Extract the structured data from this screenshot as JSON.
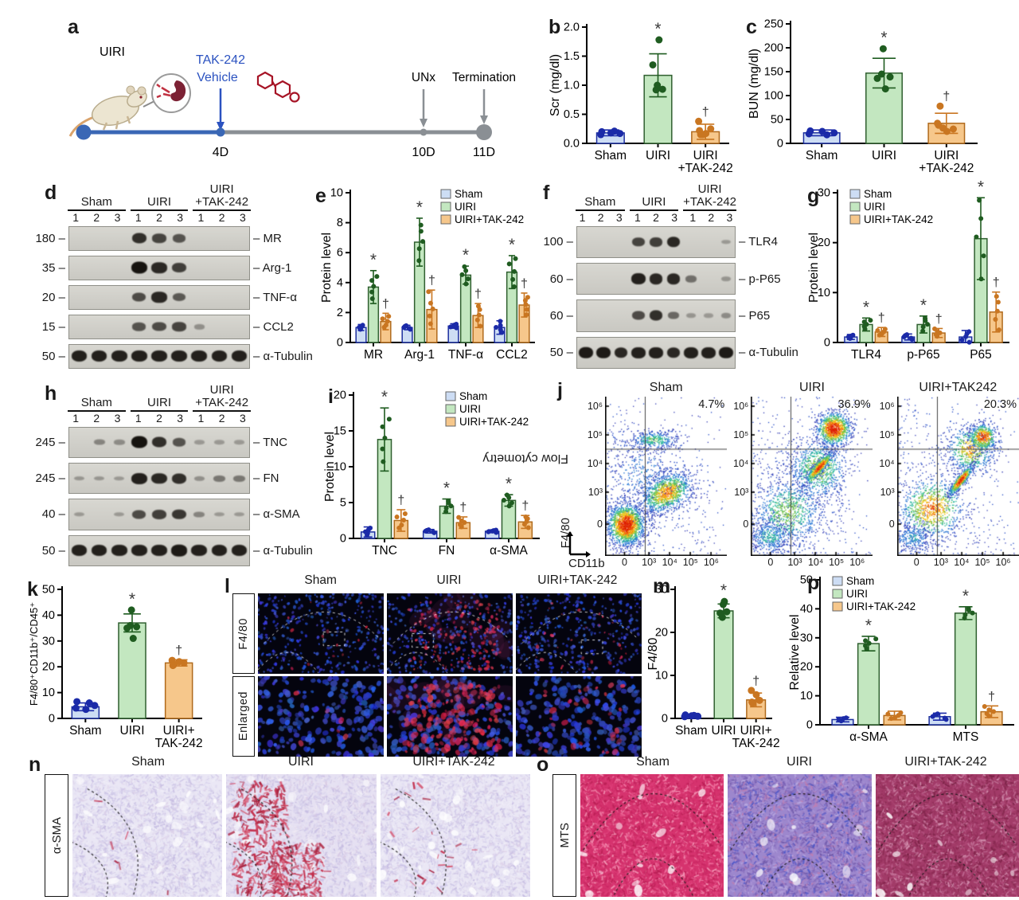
{
  "panel_labels": {
    "a": "a",
    "b": "b",
    "c": "c",
    "d": "d",
    "e": "e",
    "f": "f",
    "g": "g",
    "h": "h",
    "i": "i",
    "j": "j",
    "k": "k",
    "l": "l",
    "m": "m",
    "n": "n",
    "o": "o",
    "p": "p"
  },
  "timeline": {
    "uiri": "UIRI",
    "tak": "TAK-242",
    "vehicle": "Vehicle",
    "unx": "UNx",
    "termination": "Termination",
    "d4": "4D",
    "d10": "10D",
    "d11": "11D"
  },
  "colors": {
    "fill": [
      "#cdddf4",
      "#c3e7c0",
      "#f6c78b"
    ],
    "stroke": [
      "#1c2f9e",
      "#2f5f2f",
      "#b06a1c"
    ],
    "point": [
      "#1b2aa8",
      "#1f5c20",
      "#c97621"
    ],
    "sig": "#3a3a3a",
    "timeline_blue": "#3a67b5",
    "timeline_gray": "#8a8f94",
    "text_blue": "#2b52c0",
    "chem_red": "#a61325"
  },
  "chart_data": [
    {
      "id": "b",
      "type": "bar",
      "ylabel": "Scr (mg/dl)",
      "ylim": [
        0,
        2
      ],
      "yticks": [
        "0.0",
        "0.5",
        "1.0",
        "1.5",
        "2.0"
      ],
      "categories": [
        "Sham",
        "UIRI",
        "UIRI\n+TAK-242"
      ],
      "values": [
        0.18,
        1.17,
        0.2
      ],
      "errors": [
        0.05,
        0.37,
        0.13
      ],
      "sig": [
        "",
        "*",
        "†"
      ],
      "points": [
        [
          0.15,
          0.2,
          0.17,
          0.21,
          0.18
        ],
        [
          0.92,
          1.0,
          1.35,
          1.78,
          0.93
        ],
        [
          0.15,
          0.38,
          0.25,
          0.17,
          0.22,
          0.15
        ]
      ]
    },
    {
      "id": "c",
      "type": "bar",
      "ylabel": "BUN (mg/dl)",
      "ylim": [
        0,
        250
      ],
      "yticks": [
        "0",
        "50",
        "100",
        "150",
        "200",
        "250"
      ],
      "categories": [
        "Sham",
        "UIRI",
        "UIRI\n+TAK-242"
      ],
      "values": [
        22,
        147,
        42
      ],
      "errors": [
        6,
        31,
        21
      ],
      "sig": [
        "",
        "*",
        "†"
      ],
      "points": [
        [
          20,
          26,
          22,
          18,
          25
        ],
        [
          145,
          198,
          136,
          114,
          139
        ],
        [
          78,
          42,
          30,
          25,
          38,
          32
        ]
      ]
    },
    {
      "id": "e",
      "type": "grouped",
      "ylabel": "Protein level",
      "ylim": [
        0,
        10
      ],
      "yticks": [
        "0",
        "2",
        "4",
        "6",
        "8",
        "10"
      ],
      "categories": [
        "MR",
        "Arg-1",
        "TNF-α",
        "CCL2"
      ],
      "legend": [
        "Sham",
        "UIRI",
        "UIRI+TAK-242"
      ],
      "legend_pos": "tr",
      "series": [
        {
          "name": "Sham",
          "values": [
            1,
            1,
            1.1,
            1
          ],
          "errors": [
            0.2,
            0.15,
            0.15,
            0.45
          ],
          "sig": [
            "",
            "",
            "",
            ""
          ]
        },
        {
          "name": "UIRI",
          "values": [
            3.7,
            6.7,
            4.5,
            4.7
          ],
          "errors": [
            1.1,
            1.6,
            0.6,
            1.1
          ],
          "sig": [
            "*",
            "*",
            "*",
            "*"
          ]
        },
        {
          "name": "UIRI+TAK-242",
          "values": [
            1.4,
            2.2,
            1.8,
            2.5
          ],
          "errors": [
            0.55,
            1.3,
            0.8,
            0.8
          ],
          "sig": [
            "†",
            "†",
            "†",
            "†"
          ]
        }
      ]
    },
    {
      "id": "g",
      "type": "grouped",
      "ylabel": "Protein level",
      "ylim": [
        0,
        30
      ],
      "yticks": [
        "0",
        "10",
        "20",
        "30"
      ],
      "categories": [
        "TLR4",
        "p-P65",
        "P65"
      ],
      "legend": [
        "Sham",
        "UIRI",
        "UIRI+TAK-242"
      ],
      "legend_pos": "tl",
      "series": [
        {
          "name": "Sham",
          "values": [
            1.1,
            1.1,
            1.1
          ],
          "errors": [
            0.5,
            0.6,
            1.3
          ],
          "sig": [
            "",
            "",
            ""
          ]
        },
        {
          "name": "UIRI",
          "values": [
            3.6,
            3.6,
            20.8
          ],
          "errors": [
            1.3,
            1.7,
            8.2
          ],
          "sig": [
            "*",
            "*",
            "*"
          ]
        },
        {
          "name": "UIRI+TAK-242",
          "values": [
            2.1,
            1.9,
            6.1
          ],
          "errors": [
            0.9,
            0.9,
            4.0
          ],
          "sig": [
            "†",
            "†",
            "†"
          ]
        }
      ]
    },
    {
      "id": "i",
      "type": "grouped",
      "ylabel": "Protein level",
      "ylim": [
        0,
        20
      ],
      "yticks": [
        "0",
        "5",
        "10",
        "15",
        "20"
      ],
      "categories": [
        "TNC",
        "FN",
        "α-SMA"
      ],
      "legend": [
        "Sham",
        "UIRI",
        "UIRI+TAK-242"
      ],
      "legend_pos": "tr",
      "series": [
        {
          "name": "Sham",
          "values": [
            0.9,
            1,
            1
          ],
          "errors": [
            0.7,
            0.25,
            0.2
          ],
          "sig": [
            "",
            "",
            ""
          ]
        },
        {
          "name": "UIRI",
          "values": [
            13.8,
            4.5,
            5.3
          ],
          "errors": [
            4.4,
            1.0,
            0.8
          ],
          "sig": [
            "*",
            "*",
            "*"
          ]
        },
        {
          "name": "UIRI+TAK-242",
          "values": [
            2.5,
            2.2,
            2.3
          ],
          "errors": [
            1.5,
            0.8,
            0.9
          ],
          "sig": [
            "†",
            "†",
            "†"
          ]
        }
      ]
    },
    {
      "id": "k",
      "type": "bar",
      "ylabel": "F4/80⁺CD11b⁺/CD45⁺",
      "ylim": [
        0,
        50
      ],
      "yticks": [
        "0",
        "10",
        "20",
        "30",
        "40",
        "50"
      ],
      "categories": [
        "Sham",
        "UIRI",
        "UIRI+\nTAK-242"
      ],
      "values": [
        4.5,
        37,
        21.5
      ],
      "errors": [
        1.5,
        3.5,
        1.2
      ],
      "sig": [
        "",
        "*",
        "†"
      ],
      "points": [
        [
          4,
          6.5,
          5,
          6,
          3.5
        ],
        [
          36,
          42,
          35,
          31,
          35.5
        ],
        [
          21,
          22.5,
          21.5,
          22,
          20.5
        ]
      ]
    },
    {
      "id": "m",
      "type": "bar",
      "ylabel": "F4/80",
      "ylim": [
        0,
        30
      ],
      "yticks": [
        "0",
        "10",
        "20",
        "30"
      ],
      "categories": [
        "Sham",
        "UIRI",
        "UIRI+\nTAK-242"
      ],
      "values": [
        0.6,
        25,
        4.3
      ],
      "errors": [
        0.3,
        1.6,
        1.6
      ],
      "sig": [
        "",
        "*",
        "†"
      ],
      "points": [
        [
          0.4,
          0.8,
          0.5,
          0.7,
          0.6
        ],
        [
          23.5,
          26.5,
          24.5,
          27.2,
          24.8
        ],
        [
          3.5,
          6.5,
          4.2,
          5.5,
          3.8
        ]
      ]
    },
    {
      "id": "p",
      "type": "grouped",
      "ylabel": "Relative level",
      "ylim": [
        0,
        50
      ],
      "yticks": [
        "0",
        "10",
        "20",
        "30",
        "40",
        "50"
      ],
      "categories": [
        "α-SMA",
        "MTS"
      ],
      "legend": [
        "Sham",
        "UIRI",
        "UIRI+TAK-242"
      ],
      "legend_pos": "tl",
      "series": [
        {
          "name": "Sham",
          "values": [
            1.8,
            2.8
          ],
          "errors": [
            0.8,
            1.2
          ],
          "sig": [
            "",
            ""
          ]
        },
        {
          "name": "UIRI",
          "values": [
            28,
            38.5
          ],
          "errors": [
            2.5,
            2.2
          ],
          "sig": [
            "*",
            "*"
          ]
        },
        {
          "name": "UIRI+TAK-242",
          "values": [
            3.2,
            4.5
          ],
          "errors": [
            1.5,
            2.0
          ],
          "sig": [
            "",
            "†"
          ]
        }
      ]
    }
  ],
  "blots": [
    {
      "id": "d",
      "groups": [
        "Sham",
        "UIRI",
        "UIRI\n+TAK-242"
      ],
      "lanes": [
        "1",
        "2",
        "3",
        "1",
        "2",
        "3",
        "1",
        "2",
        "3"
      ],
      "rows": [
        {
          "marker": "180",
          "protein": "MR",
          "bands": [
            0,
            0,
            0,
            0.8,
            0.65,
            0.55,
            0,
            0,
            0
          ]
        },
        {
          "marker": "35",
          "protein": "Arg-1",
          "bands": [
            0,
            0,
            0,
            1,
            0.85,
            0.7,
            0,
            0,
            0
          ]
        },
        {
          "marker": "20",
          "protein": "TNF-α",
          "bands": [
            0,
            0,
            0,
            0.6,
            0.85,
            0.5,
            0,
            0,
            0
          ]
        },
        {
          "marker": "15",
          "protein": "CCL2",
          "bands": [
            0,
            0,
            0,
            0.55,
            0.6,
            0.65,
            0.12,
            0,
            0
          ]
        },
        {
          "marker": "50",
          "protein": "α-Tubulin",
          "bands": [
            0.9,
            0.9,
            0.9,
            0.9,
            0.9,
            0.9,
            0.9,
            0.9,
            0.9
          ]
        }
      ]
    },
    {
      "id": "f",
      "groups": [
        "Sham",
        "UIRI",
        "UIRI\n+TAK-242"
      ],
      "lanes": [
        "1",
        "2",
        "3",
        "1",
        "2",
        "3",
        "1",
        "2",
        "3"
      ],
      "rows": [
        {
          "marker": "100",
          "protein": "TLR4",
          "bands": [
            0,
            0,
            0,
            0.65,
            0.7,
            0.85,
            0,
            0,
            0.05
          ]
        },
        {
          "marker": "60",
          "protein": "p-P65",
          "bands": [
            0,
            0,
            0,
            0.9,
            0.85,
            0.85,
            0.35,
            0,
            0.08
          ]
        },
        {
          "marker": "60",
          "protein": "P65",
          "bands": [
            0,
            0,
            0,
            0.6,
            0.8,
            0.4,
            0.08,
            0.05,
            0.15
          ]
        },
        {
          "marker": "50",
          "protein": "α-Tubulin",
          "bands": [
            0.95,
            0.95,
            0.85,
            0.9,
            0.9,
            0.85,
            0.9,
            0.9,
            0.95
          ]
        }
      ]
    },
    {
      "id": "h",
      "groups": [
        "Sham",
        "UIRI",
        "UIRI\n+TAK-242"
      ],
      "lanes": [
        "1",
        "2",
        "3",
        "1",
        "2",
        "3",
        "1",
        "2",
        "3"
      ],
      "rows": [
        {
          "marker": "245",
          "protein": "TNC",
          "bands": [
            0,
            0.2,
            0.15,
            1,
            0.8,
            0.55,
            0.05,
            0.05,
            0.05
          ]
        },
        {
          "marker": "245",
          "protein": "FN",
          "bands": [
            0.08,
            0.08,
            0.05,
            0.9,
            0.85,
            0.8,
            0.12,
            0.3,
            0.3
          ]
        },
        {
          "marker": "40",
          "protein": "α-SMA",
          "bands": [
            0.05,
            0,
            0.05,
            0.6,
            0.7,
            0.75,
            0.2,
            0.05,
            0.05
          ]
        },
        {
          "marker": "50",
          "protein": "α-Tubulin",
          "bands": [
            0.9,
            0.9,
            0.9,
            0.9,
            0.9,
            0.95,
            0.9,
            0.9,
            0.9
          ]
        }
      ]
    }
  ],
  "flow": {
    "ylabel": "Flow cytometry",
    "yaxis": "F4/80",
    "xlabel": "CD11b",
    "yticks": [
      "10⁶",
      "10⁵",
      "10⁴",
      "10³",
      "0"
    ],
    "xticks": [
      "0",
      "10³",
      "10⁴",
      "10⁵",
      "10⁶"
    ],
    "plots": [
      {
        "title": "Sham",
        "pct": "4.7%"
      },
      {
        "title": "UIRI",
        "pct": "36.9%"
      },
      {
        "title": "UIRI+TAK242",
        "pct": "20.3%"
      }
    ]
  },
  "if_panel": {
    "rows": [
      "F4/80",
      "Enlarged"
    ],
    "cols": [
      "Sham",
      "UIRI",
      "UIRI+TAK-242"
    ]
  },
  "histo_n": {
    "label": "α-SMA",
    "cols": [
      "Sham",
      "UIRI",
      "UIRI+TAK-242"
    ]
  },
  "histo_o": {
    "label": "MTS",
    "cols": [
      "Sham",
      "UIRI",
      "UIRI+TAK-242"
    ]
  }
}
